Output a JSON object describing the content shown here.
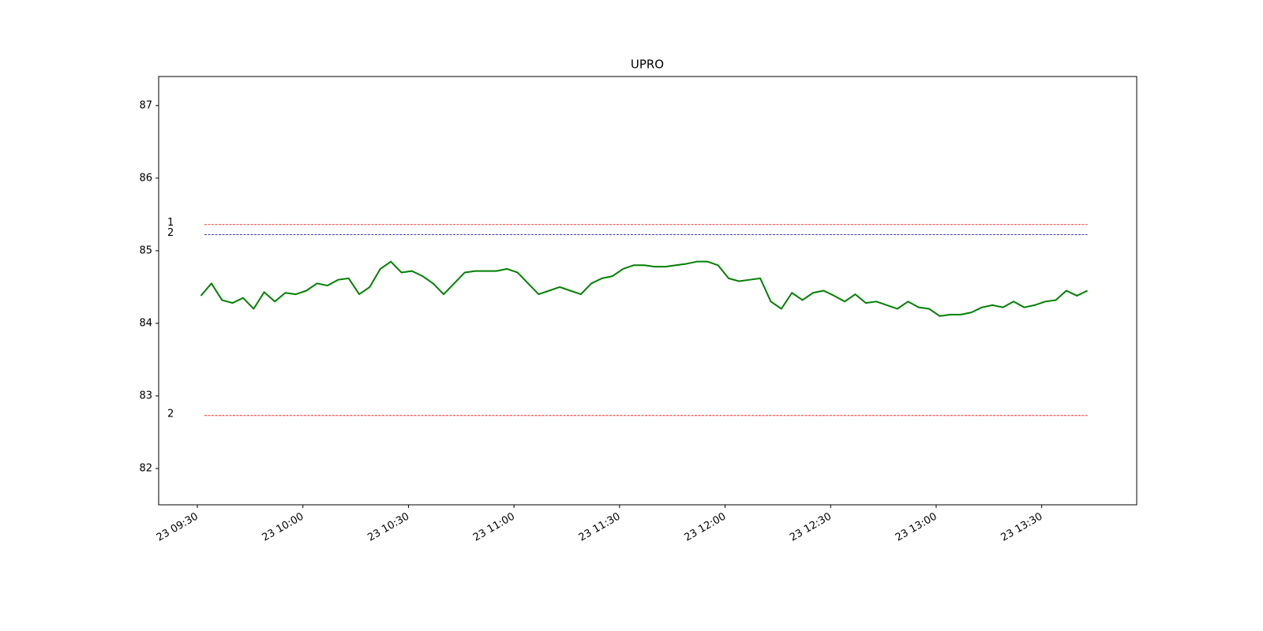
{
  "chart_data": {
    "type": "line",
    "title": "UPRO",
    "x": [
      "23 09:31",
      "23 09:34",
      "23 09:37",
      "23 09:40",
      "23 09:43",
      "23 09:46",
      "23 09:49",
      "23 09:52",
      "23 09:55",
      "23 09:58",
      "23 10:01",
      "23 10:04",
      "23 10:07",
      "23 10:10",
      "23 10:13",
      "23 10:16",
      "23 10:19",
      "23 10:22",
      "23 10:25",
      "23 10:28",
      "23 10:31",
      "23 10:34",
      "23 10:37",
      "23 10:40",
      "23 10:43",
      "23 10:46",
      "23 10:49",
      "23 10:52",
      "23 10:55",
      "23 10:58",
      "23 11:01",
      "23 11:04",
      "23 11:07",
      "23 11:10",
      "23 11:13",
      "23 11:16",
      "23 11:19",
      "23 11:22",
      "23 11:25",
      "23 11:28",
      "23 11:31",
      "23 11:34",
      "23 11:37",
      "23 11:40",
      "23 11:43",
      "23 11:46",
      "23 11:49",
      "23 11:52",
      "23 11:55",
      "23 11:58",
      "23 12:01",
      "23 12:04",
      "23 12:07",
      "23 12:10",
      "23 12:13",
      "23 12:16",
      "23 12:19",
      "23 12:22",
      "23 12:25",
      "23 12:28",
      "23 12:31",
      "23 12:34",
      "23 12:37",
      "23 12:40",
      "23 12:43",
      "23 12:46",
      "23 12:49",
      "23 12:52",
      "23 12:55",
      "23 12:58",
      "23 13:01",
      "23 13:04",
      "23 13:07",
      "23 13:10",
      "23 13:13",
      "23 13:16",
      "23 13:19",
      "23 13:22",
      "23 13:25",
      "23 13:28",
      "23 13:31",
      "23 13:34",
      "23 13:37",
      "23 13:40",
      "23 13:43"
    ],
    "series": [
      {
        "name": "UPRO",
        "color": "#008000",
        "values": [
          84.38,
          84.55,
          84.32,
          84.28,
          84.35,
          84.2,
          84.43,
          84.3,
          84.42,
          84.4,
          84.45,
          84.55,
          84.52,
          84.6,
          84.62,
          84.4,
          84.5,
          84.75,
          84.85,
          84.7,
          84.72,
          84.65,
          84.55,
          84.4,
          84.55,
          84.7,
          84.72,
          84.72,
          84.72,
          84.75,
          84.7,
          84.55,
          84.4,
          84.45,
          84.5,
          84.45,
          84.4,
          84.55,
          84.62,
          84.65,
          84.75,
          84.8,
          84.8,
          84.78,
          84.78,
          84.8,
          84.82,
          84.85,
          84.85,
          84.8,
          84.62,
          84.58,
          84.6,
          84.62,
          84.3,
          84.2,
          84.42,
          84.32,
          84.42,
          84.45,
          84.38,
          84.3,
          84.4,
          84.28,
          84.3,
          84.25,
          84.2,
          84.3,
          84.22,
          84.2,
          84.1,
          84.12,
          84.12,
          84.15,
          84.22,
          84.25,
          84.22,
          84.3,
          84.22,
          84.25,
          84.3,
          84.32,
          84.45,
          84.38,
          84.45
        ]
      }
    ],
    "levels": [
      {
        "label": "1",
        "value": 85.36,
        "color": "#ff0000"
      },
      {
        "label": "2",
        "value": 85.22,
        "color": "#000080"
      },
      {
        "label": "2",
        "value": 82.73,
        "color": "#ff0000"
      }
    ],
    "level_span": [
      "23 09:32",
      "23 13:43"
    ],
    "xlim": [
      "23 09:19",
      "23 13:57"
    ],
    "xticks": [
      "23 09:30",
      "23 10:00",
      "23 10:30",
      "23 11:00",
      "23 11:30",
      "23 12:00",
      "23 12:30",
      "23 13:00",
      "23 13:30"
    ],
    "ylim": [
      81.5,
      87.4
    ],
    "yticks": [
      82,
      83,
      84,
      85,
      86,
      87
    ]
  }
}
